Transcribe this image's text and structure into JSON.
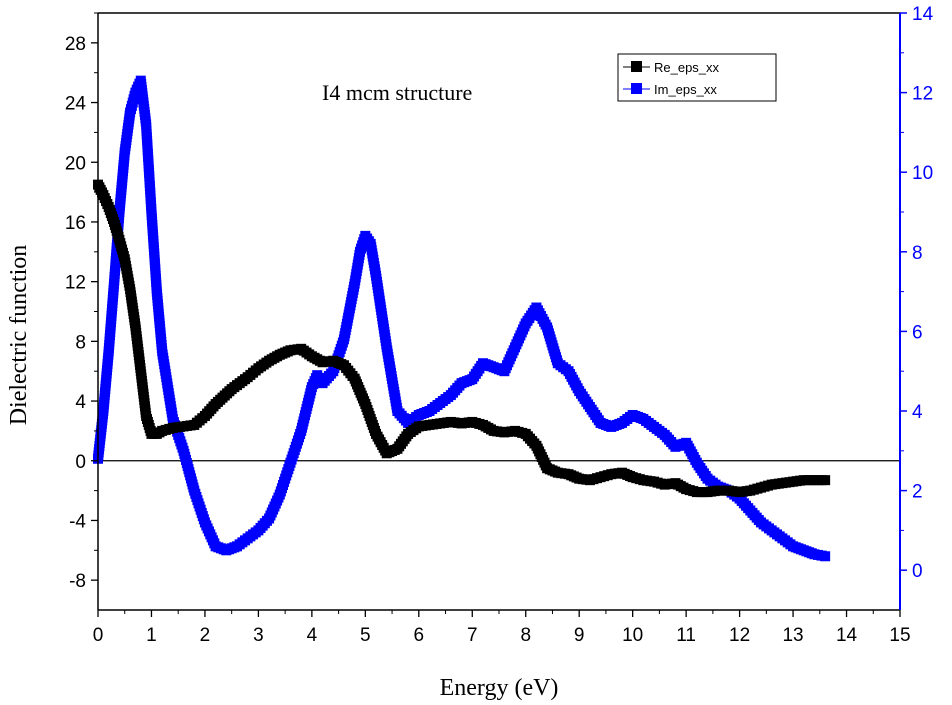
{
  "chart_data": {
    "type": "line",
    "title": "",
    "annotation": "I4 mcm structure",
    "xlabel": "Energy (eV)",
    "ylabel": "Dielectric function",
    "xlim": [
      0,
      15
    ],
    "ylim_left": [
      -10,
      30
    ],
    "ylim_right": [
      -1,
      14
    ],
    "x_ticks": [
      "0",
      "1",
      "2",
      "3",
      "4",
      "5",
      "6",
      "7",
      "8",
      "9",
      "10",
      "11",
      "12",
      "13",
      "14",
      "15"
    ],
    "y_ticks_left": [
      "-8",
      "-4",
      "0",
      "4",
      "8",
      "12",
      "16",
      "20",
      "24",
      "28"
    ],
    "y_ticks_right": [
      "0",
      "2",
      "4",
      "6",
      "8",
      "10",
      "12",
      "14"
    ],
    "legend_position": "top-right",
    "colors": {
      "re": "#000000",
      "im": "#0000ff",
      "right_axis": "#0000ff"
    },
    "series": [
      {
        "name": "Re_eps_xx",
        "axis": "left",
        "x": [
          0,
          0.1,
          0.2,
          0.3,
          0.4,
          0.5,
          0.6,
          0.7,
          0.8,
          0.9,
          1.0,
          1.1,
          1.2,
          1.4,
          1.6,
          1.8,
          2.0,
          2.2,
          2.5,
          2.8,
          3.0,
          3.2,
          3.4,
          3.6,
          3.8,
          4.0,
          4.2,
          4.4,
          4.6,
          4.8,
          5.0,
          5.2,
          5.4,
          5.6,
          5.8,
          6.0,
          6.2,
          6.4,
          6.6,
          6.8,
          7.0,
          7.2,
          7.4,
          7.6,
          7.8,
          8.0,
          8.2,
          8.4,
          8.6,
          8.8,
          9.0,
          9.2,
          9.4,
          9.6,
          9.8,
          10.0,
          10.2,
          10.4,
          10.6,
          10.8,
          11.0,
          11.2,
          11.4,
          11.6,
          11.8,
          12.0,
          12.2,
          12.4,
          12.6,
          12.8,
          13.0,
          13.2,
          13.4,
          13.6
        ],
        "values": [
          18.5,
          17.8,
          17.0,
          16.0,
          14.8,
          13.5,
          11.5,
          9.0,
          6.0,
          3.0,
          1.8,
          1.8,
          2.0,
          2.2,
          2.3,
          2.4,
          3.0,
          3.8,
          4.8,
          5.6,
          6.2,
          6.7,
          7.1,
          7.4,
          7.5,
          7.0,
          6.6,
          6.7,
          6.4,
          5.5,
          3.8,
          1.8,
          0.5,
          0.8,
          1.8,
          2.3,
          2.4,
          2.5,
          2.6,
          2.5,
          2.6,
          2.4,
          2.0,
          1.9,
          2.0,
          1.8,
          1.0,
          -0.5,
          -0.8,
          -0.9,
          -1.2,
          -1.3,
          -1.1,
          -0.9,
          -0.8,
          -1.1,
          -1.3,
          -1.4,
          -1.6,
          -1.5,
          -1.9,
          -2.1,
          -2.1,
          -2.0,
          -2.0,
          -2.1,
          -2.0,
          -1.8,
          -1.6,
          -1.5,
          -1.4,
          -1.3,
          -1.3,
          -1.3
        ]
      },
      {
        "name": "Im_eps_xx",
        "axis": "right",
        "x": [
          0,
          0.1,
          0.2,
          0.3,
          0.4,
          0.5,
          0.6,
          0.7,
          0.8,
          0.9,
          1.0,
          1.1,
          1.2,
          1.4,
          1.6,
          1.8,
          2.0,
          2.2,
          2.4,
          2.6,
          2.8,
          3.0,
          3.2,
          3.4,
          3.6,
          3.8,
          4.0,
          4.1,
          4.2,
          4.4,
          4.6,
          4.8,
          4.9,
          5.0,
          5.1,
          5.2,
          5.4,
          5.6,
          5.8,
          6.0,
          6.2,
          6.4,
          6.6,
          6.8,
          7.0,
          7.2,
          7.4,
          7.6,
          7.8,
          8.0,
          8.2,
          8.4,
          8.6,
          8.8,
          9.0,
          9.2,
          9.4,
          9.6,
          9.8,
          10.0,
          10.2,
          10.4,
          10.6,
          10.8,
          11.0,
          11.2,
          11.4,
          11.6,
          11.8,
          12.0,
          12.2,
          12.4,
          12.6,
          12.8,
          13.0,
          13.2,
          13.4,
          13.6
        ],
        "values": [
          2.8,
          4.0,
          5.5,
          7.2,
          9.0,
          10.5,
          11.5,
          12.0,
          12.3,
          11.2,
          9.0,
          7.0,
          5.5,
          3.8,
          3.0,
          2.0,
          1.2,
          0.6,
          0.5,
          0.6,
          0.8,
          1.0,
          1.3,
          1.9,
          2.7,
          3.5,
          4.6,
          4.9,
          4.7,
          5.0,
          5.8,
          7.2,
          8.0,
          8.4,
          8.2,
          7.4,
          5.6,
          4.0,
          3.7,
          3.9,
          4.0,
          4.2,
          4.4,
          4.7,
          4.8,
          5.2,
          5.1,
          5.0,
          5.6,
          6.2,
          6.6,
          6.1,
          5.2,
          5.0,
          4.5,
          4.1,
          3.7,
          3.6,
          3.7,
          3.9,
          3.8,
          3.6,
          3.4,
          3.1,
          3.2,
          2.7,
          2.3,
          2.1,
          2.0,
          1.8,
          1.5,
          1.2,
          1.0,
          0.8,
          0.6,
          0.5,
          0.4,
          0.35
        ]
      }
    ]
  }
}
